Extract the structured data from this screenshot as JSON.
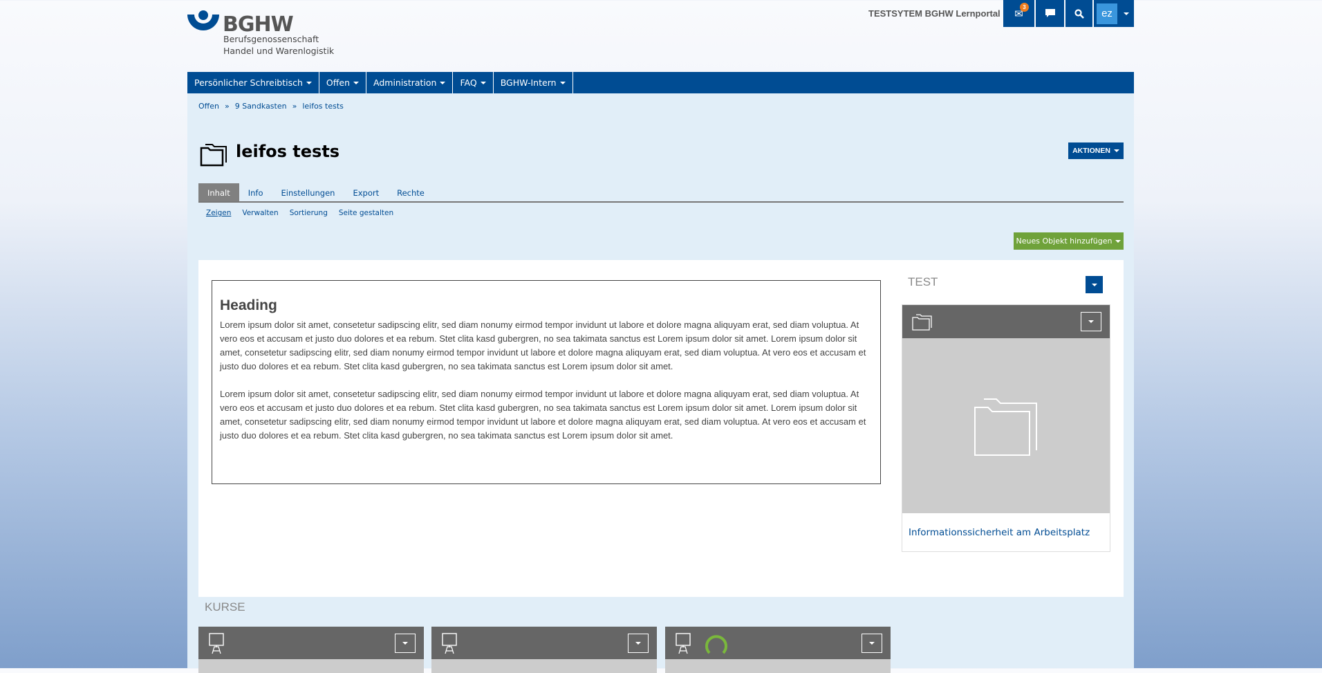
{
  "header": {
    "logo": {
      "title": "BGHW",
      "line1": "Berufsgenossenschaft",
      "line2": "Handel und Warenlogistik"
    },
    "portal_title": "TESTSYTEM BGHW Lernportal",
    "mail_badge": "3",
    "user_initials": "ez"
  },
  "nav": [
    {
      "label": "Persönlicher Schreibtisch"
    },
    {
      "label": "Offen"
    },
    {
      "label": "Administration"
    },
    {
      "label": "FAQ"
    },
    {
      "label": "BGHW-Intern"
    }
  ],
  "breadcrumb": [
    "Offen",
    "»",
    "9 Sandkasten",
    "»",
    "leifos tests"
  ],
  "page": {
    "title": "leifos tests",
    "actions_label": "AKTIONEN",
    "add_label": "Neues Objekt hinzufügen"
  },
  "tabs": [
    {
      "label": "Inhalt",
      "active": true
    },
    {
      "label": "Info"
    },
    {
      "label": "Einstellungen"
    },
    {
      "label": "Export"
    },
    {
      "label": "Rechte"
    }
  ],
  "subtabs": [
    {
      "label": "Zeigen",
      "active": true
    },
    {
      "label": "Verwalten"
    },
    {
      "label": "Sortierung"
    },
    {
      "label": "Seite gestalten"
    }
  ],
  "textblock": {
    "heading": "Heading",
    "paragraphs": [
      "Lorem ipsum dolor sit amet, consetetur sadipscing elitr, sed diam nonumy eirmod tempor invidunt ut labore et dolore magna aliquyam erat, sed diam voluptua. At vero eos et accusam et justo duo dolores et ea rebum. Stet clita kasd gubergren, no sea takimata sanctus est Lorem ipsum dolor sit amet. Lorem ipsum dolor sit amet, consetetur sadipscing elitr, sed diam nonumy eirmod tempor invidunt ut labore et dolore magna aliquyam erat, sed diam voluptua. At vero eos et accusam et justo duo dolores et ea rebum. Stet clita kasd gubergren, no sea takimata sanctus est Lorem ipsum dolor sit amet.",
      "Lorem ipsum dolor sit amet, consetetur sadipscing elitr, sed diam nonumy eirmod tempor invidunt ut labore et dolore magna aliquyam erat, sed diam voluptua. At vero eos et accusam et justo duo dolores et ea rebum. Stet clita kasd gubergren, no sea takimata sanctus est Lorem ipsum dolor sit amet. Lorem ipsum dolor sit amet, consetetur sadipscing elitr, sed diam nonumy eirmod tempor invidunt ut labore et dolore magna aliquyam erat, sed diam voluptua. At vero eos et accusam et justo duo dolores et ea rebum. Stet clita kasd gubergren, no sea takimata sanctus est Lorem ipsum dolor sit amet."
    ]
  },
  "side": {
    "section_title": "TEST",
    "card": {
      "icon": "folder-icon",
      "link": "Informationssicherheit am Arbeitsplatz"
    }
  },
  "courses": {
    "section_title": "KURSE",
    "cards": [
      {
        "icon": "easel-icon"
      },
      {
        "icon": "easel-icon"
      },
      {
        "icon": "easel-icon",
        "progress_ring": true
      }
    ]
  },
  "colors": {
    "brand": "#004c93",
    "green": "#6fa23a",
    "content_bg": "#e1eef8",
    "card_header": "#666666"
  }
}
